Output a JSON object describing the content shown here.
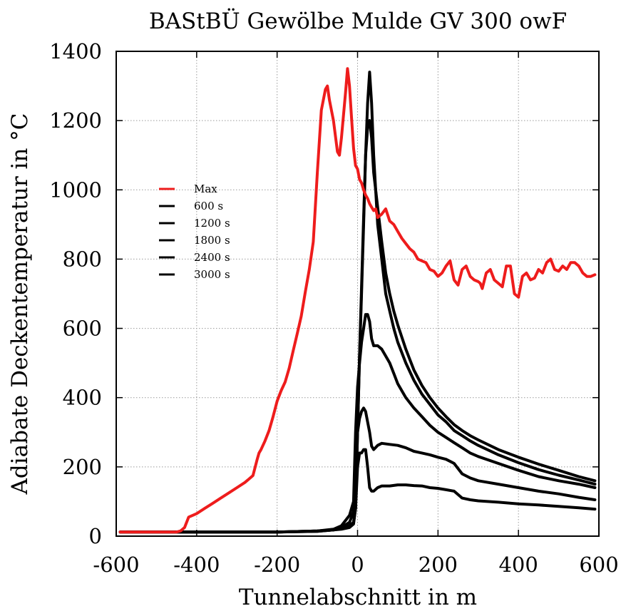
{
  "chart_data": {
    "type": "line",
    "title": "BAStBÜ Gewölbe Mulde GV 300 owF",
    "xlabel": "Tunnelabschnitt in m",
    "ylabel": "Adiabate Deckentemperatur in °C",
    "xlim": [
      -600,
      600
    ],
    "ylim": [
      0,
      1400
    ],
    "xticks": [
      "-600",
      "-400",
      "-200",
      "0",
      "200",
      "400",
      "600"
    ],
    "yticks": [
      "0",
      "200",
      "400",
      "600",
      "800",
      "1000",
      "1200",
      "1400"
    ],
    "grid": true,
    "legend_position": "upper-left",
    "series": [
      {
        "name": "Max",
        "color": "#ee1c1c",
        "x": [
          -590,
          -450,
          -440,
          -430,
          -420,
          -400,
          -380,
          -360,
          -340,
          -320,
          -300,
          -280,
          -270,
          -260,
          -250,
          -245,
          -240,
          -230,
          -220,
          -210,
          -200,
          -190,
          -180,
          -170,
          -160,
          -150,
          -140,
          -130,
          -120,
          -110,
          -100,
          -90,
          -80,
          -75,
          -70,
          -60,
          -50,
          -45,
          -40,
          -30,
          -25,
          -20,
          -15,
          -10,
          -5,
          0,
          5,
          10,
          15,
          20,
          25,
          30,
          35,
          40,
          45,
          50,
          60,
          70,
          80,
          90,
          100,
          110,
          120,
          130,
          140,
          150,
          160,
          170,
          180,
          190,
          200,
          210,
          220,
          230,
          240,
          250,
          260,
          270,
          280,
          290,
          300,
          305,
          310,
          320,
          330,
          340,
          350,
          360,
          370,
          380,
          390,
          400,
          410,
          420,
          430,
          440,
          450,
          460,
          470,
          480,
          490,
          500,
          510,
          520,
          530,
          540,
          550,
          560,
          570,
          580,
          590
        ],
        "values": [
          12,
          12,
          15,
          25,
          55,
          65,
          80,
          95,
          110,
          125,
          140,
          155,
          165,
          175,
          220,
          240,
          250,
          275,
          305,
          345,
          390,
          420,
          445,
          485,
          535,
          585,
          635,
          705,
          770,
          850,
          1050,
          1230,
          1290,
          1300,
          1260,
          1200,
          1110,
          1100,
          1150,
          1280,
          1350,
          1300,
          1210,
          1120,
          1070,
          1060,
          1030,
          1020,
          1000,
          985,
          975,
          960,
          950,
          940,
          945,
          920,
          930,
          945,
          910,
          900,
          880,
          860,
          845,
          830,
          820,
          800,
          795,
          790,
          770,
          765,
          750,
          760,
          780,
          795,
          740,
          725,
          770,
          780,
          750,
          740,
          735,
          730,
          715,
          760,
          770,
          740,
          730,
          720,
          780,
          780,
          700,
          690,
          750,
          760,
          740,
          745,
          770,
          760,
          790,
          800,
          770,
          765,
          780,
          770,
          790,
          790,
          780,
          760,
          750,
          750,
          755
        ],
        "x_override_note": null
      },
      {
        "name": "600 s",
        "color": "#000000",
        "x": [
          -590,
          -200,
          -100,
          -60,
          -40,
          -20,
          -10,
          -5,
          0,
          5,
          10,
          15,
          20,
          25,
          30,
          35,
          40,
          50,
          60,
          80,
          100,
          120,
          140,
          160,
          180,
          200,
          220,
          240,
          260,
          280,
          300,
          350,
          400,
          450,
          500,
          550,
          590
        ],
        "values": [
          12,
          12,
          14,
          18,
          20,
          25,
          35,
          80,
          200,
          240,
          240,
          250,
          250,
          200,
          140,
          130,
          130,
          140,
          145,
          145,
          148,
          148,
          146,
          145,
          140,
          138,
          134,
          130,
          110,
          105,
          102,
          98,
          93,
          90,
          86,
          82,
          78
        ]
      },
      {
        "name": "1200 s",
        "color": "#000000",
        "x": [
          -590,
          -200,
          -100,
          -60,
          -40,
          -20,
          -10,
          -5,
          0,
          5,
          10,
          15,
          20,
          25,
          30,
          35,
          40,
          50,
          60,
          80,
          100,
          120,
          140,
          160,
          180,
          200,
          220,
          240,
          260,
          280,
          300,
          350,
          400,
          450,
          500,
          550,
          590
        ],
        "values": [
          12,
          12,
          14,
          18,
          25,
          40,
          70,
          200,
          300,
          340,
          360,
          370,
          360,
          330,
          300,
          260,
          250,
          262,
          268,
          265,
          262,
          255,
          245,
          240,
          235,
          228,
          222,
          210,
          180,
          168,
          160,
          150,
          140,
          130,
          122,
          112,
          105
        ]
      },
      {
        "name": "1800 s",
        "color": "#000000",
        "x": [
          -590,
          -200,
          -100,
          -60,
          -40,
          -20,
          -10,
          -5,
          0,
          5,
          10,
          15,
          20,
          25,
          30,
          35,
          40,
          45,
          50,
          60,
          70,
          80,
          90,
          100,
          120,
          140,
          160,
          180,
          200,
          220,
          240,
          260,
          280,
          300,
          350,
          400,
          450,
          500,
          550,
          590
        ],
        "values": [
          12,
          12,
          15,
          20,
          30,
          60,
          100,
          300,
          430,
          500,
          560,
          600,
          640,
          640,
          620,
          570,
          550,
          550,
          550,
          540,
          520,
          500,
          470,
          440,
          400,
          370,
          345,
          320,
          300,
          285,
          270,
          255,
          240,
          230,
          210,
          190,
          172,
          160,
          150,
          140
        ]
      },
      {
        "name": "2400 s",
        "color": "#000000",
        "x": [
          -590,
          -200,
          -100,
          -60,
          -40,
          -20,
          -10,
          -5,
          0,
          5,
          10,
          15,
          20,
          25,
          30,
          35,
          40,
          50,
          60,
          70,
          80,
          90,
          100,
          120,
          140,
          160,
          180,
          200,
          220,
          240,
          260,
          280,
          300,
          350,
          400,
          450,
          500,
          550,
          590
        ],
        "values": [
          12,
          12,
          15,
          18,
          22,
          30,
          40,
          80,
          300,
          520,
          700,
          900,
          1100,
          1250,
          1340,
          1250,
          1100,
          900,
          800,
          700,
          650,
          600,
          560,
          500,
          450,
          410,
          380,
          350,
          330,
          305,
          290,
          275,
          262,
          235,
          212,
          192,
          176,
          162,
          150
        ]
      },
      {
        "name": "3000 s",
        "color": "#000000",
        "x": [
          -590,
          -200,
          -100,
          -60,
          -40,
          -20,
          -10,
          -5,
          0,
          5,
          10,
          15,
          20,
          25,
          30,
          35,
          40,
          50,
          60,
          70,
          80,
          90,
          100,
          120,
          140,
          160,
          180,
          200,
          220,
          240,
          260,
          280,
          300,
          350,
          400,
          450,
          500,
          550,
          590
        ],
        "values": [
          12,
          12,
          15,
          18,
          22,
          30,
          40,
          80,
          300,
          520,
          720,
          920,
          1100,
          1180,
          1200,
          1150,
          1050,
          950,
          850,
          760,
          700,
          650,
          610,
          540,
          480,
          435,
          400,
          370,
          345,
          322,
          305,
          290,
          278,
          250,
          228,
          208,
          190,
          172,
          160
        ]
      }
    ]
  }
}
